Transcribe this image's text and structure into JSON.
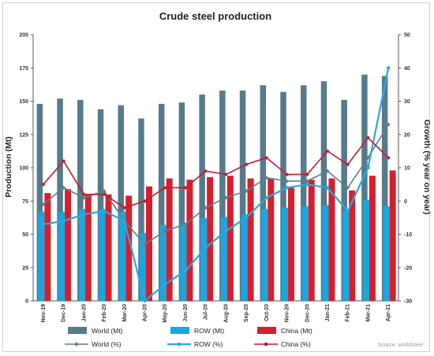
{
  "chart_data": {
    "type": "bar",
    "title": "Crude steel production",
    "ylabel": "Production (Mt)",
    "y2label": "Growth (% year on year)",
    "ylim": [
      0,
      200
    ],
    "y2lim": [
      -30,
      50
    ],
    "yticks": [
      "0",
      "25",
      "50",
      "75",
      "100",
      "125",
      "150",
      "175",
      "200"
    ],
    "y2ticks": [
      "-30",
      "-20",
      "-10",
      "0",
      "10",
      "20",
      "30",
      "40",
      "50"
    ],
    "categories": [
      "Nov-19",
      "Dec-19",
      "Jan-20",
      "Feb-20",
      "Mar-20",
      "Apr-20",
      "May-20",
      "Jun-20",
      "Jul-20",
      "Aug-20",
      "Sep-20",
      "Oct-20",
      "Nov-20",
      "Dec-20",
      "Jan-21",
      "Feb-21",
      "Mar-21",
      "Apr-21"
    ],
    "bar_series": [
      {
        "name": "World (Mt)",
        "color": "#557b8c",
        "values": [
          148,
          152,
          151,
          144,
          147,
          137,
          148,
          149,
          155,
          158,
          158,
          162,
          157,
          162,
          165,
          151,
          170,
          169
        ]
      },
      {
        "name": "ROW (Mt)",
        "color": "#1aa6df",
        "values": [
          67,
          67,
          69,
          69,
          67,
          51,
          57,
          58,
          62,
          63,
          65,
          69,
          70,
          71,
          72,
          68,
          76,
          71
        ]
      },
      {
        "name": "China (Mt)",
        "color": "#d4202d",
        "values": [
          81,
          84,
          80,
          80,
          79,
          86,
          92,
          91,
          93,
          94,
          92,
          92,
          85,
          91,
          92,
          83,
          94,
          98
        ]
      }
    ],
    "line_series": [
      {
        "name": "World (%)",
        "color": "#5f7f8e",
        "values": [
          -1,
          4,
          1,
          3,
          -6,
          -13,
          -9,
          -7,
          -2,
          1,
          3,
          7,
          6,
          6,
          9,
          4,
          13,
          23
        ]
      },
      {
        "name": "ROW (%)",
        "color": "#27a9e1",
        "values": [
          -7,
          -6,
          -4,
          -3,
          -6,
          -30,
          -25,
          -21,
          -14,
          -9,
          -5,
          1,
          4,
          5,
          4,
          -3,
          10,
          40
        ]
      },
      {
        "name": "China (%)",
        "color": "#c8182a",
        "values": [
          5,
          12,
          2,
          2,
          -2,
          0,
          4,
          4,
          9,
          8,
          11,
          13,
          8,
          8,
          15,
          11,
          19,
          13
        ]
      }
    ],
    "legend_position": "bottom",
    "grid": false,
    "source": "Source: worldsteel"
  }
}
